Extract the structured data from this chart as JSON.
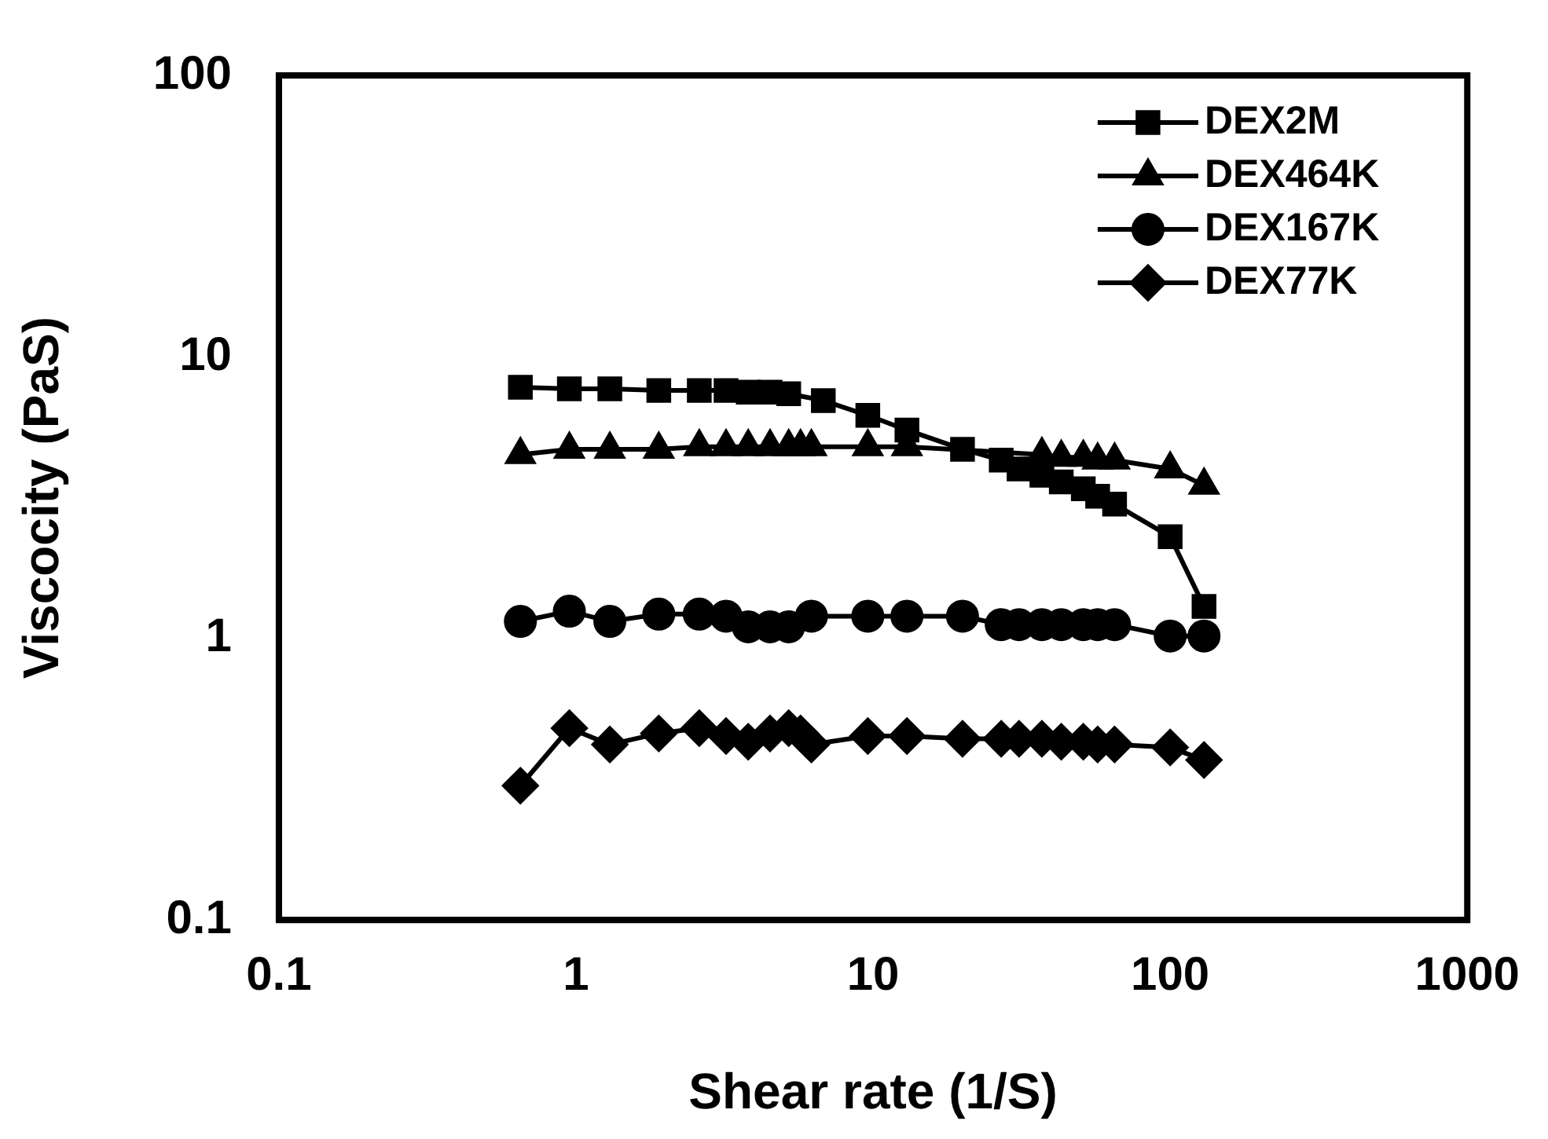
{
  "chart_data": {
    "type": "line",
    "xlabel": "Shear rate (1/S)",
    "ylabel": "Viscocity (PaS)",
    "log": "xy",
    "xlim": [
      0.1,
      1000
    ],
    "xticks": [
      0.1,
      1,
      10,
      100,
      1000
    ],
    "ylim": [
      0.1,
      100
    ],
    "yticks": [
      0.1,
      1,
      10,
      100
    ],
    "grid": false,
    "legend": "top right",
    "line_style": "solid",
    "series": [
      {
        "name": "DEX2M",
        "color": "#000000",
        "marker": "square",
        "x": [
          0.65,
          0.95,
          1.3,
          1.9,
          2.6,
          3.2,
          3.8,
          4.5,
          5.2,
          6.8,
          9.6,
          13,
          20,
          27,
          31,
          37,
          43,
          51,
          57,
          65,
          100,
          130
        ],
        "values": [
          7.8,
          7.7,
          7.7,
          7.6,
          7.6,
          7.6,
          7.5,
          7.5,
          7.4,
          7.0,
          6.2,
          5.5,
          4.7,
          4.3,
          4.0,
          3.8,
          3.6,
          3.4,
          3.2,
          3.0,
          2.3,
          1.3
        ]
      },
      {
        "name": "DEX464K",
        "color": "#000000",
        "marker": "triangle",
        "x": [
          0.65,
          0.95,
          1.3,
          1.9,
          2.6,
          3.2,
          3.8,
          4.5,
          5.2,
          5.7,
          6.2,
          9.6,
          13,
          37,
          43,
          51,
          57,
          65,
          100,
          130
        ],
        "values": [
          4.5,
          4.7,
          4.7,
          4.7,
          4.8,
          4.8,
          4.8,
          4.8,
          4.8,
          4.8,
          4.8,
          4.8,
          4.8,
          4.5,
          4.4,
          4.4,
          4.3,
          4.3,
          4.0,
          3.5
        ]
      },
      {
        "name": "DEX167K",
        "color": "#000000",
        "marker": "circle",
        "x": [
          0.65,
          0.95,
          1.3,
          1.9,
          2.6,
          3.2,
          3.8,
          4.5,
          5.2,
          6.2,
          9.6,
          13,
          20,
          27,
          31,
          37,
          43,
          51,
          57,
          65,
          100,
          130
        ],
        "values": [
          1.15,
          1.25,
          1.15,
          1.22,
          1.22,
          1.2,
          1.1,
          1.1,
          1.1,
          1.2,
          1.2,
          1.2,
          1.2,
          1.12,
          1.12,
          1.12,
          1.12,
          1.12,
          1.12,
          1.12,
          1.02,
          1.02
        ]
      },
      {
        "name": "DEX77K",
        "color": "#000000",
        "marker": "diamond",
        "x": [
          0.65,
          0.95,
          1.3,
          1.9,
          2.6,
          3.2,
          3.8,
          4.5,
          5.2,
          5.7,
          6.2,
          9.6,
          13,
          20,
          27,
          31,
          37,
          43,
          51,
          57,
          65,
          100,
          130
        ],
        "values": [
          0.3,
          0.48,
          0.42,
          0.46,
          0.48,
          0.45,
          0.43,
          0.46,
          0.48,
          0.46,
          0.42,
          0.45,
          0.45,
          0.44,
          0.44,
          0.44,
          0.44,
          0.43,
          0.43,
          0.42,
          0.42,
          0.41,
          0.37
        ]
      }
    ]
  }
}
